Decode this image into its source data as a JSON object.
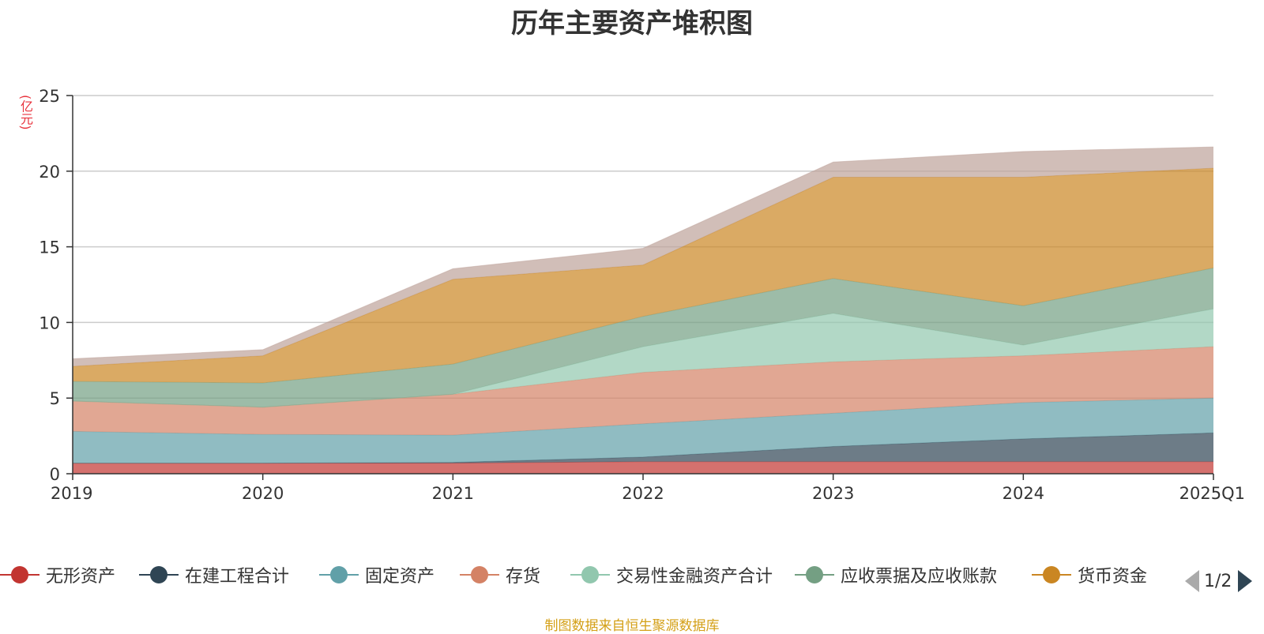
{
  "chart_data": {
    "type": "area",
    "stacked": true,
    "title": "历年主要资产堆积图",
    "ylabel": "(亿元)",
    "ylim": [
      0,
      25
    ],
    "yticks": [
      0,
      5,
      10,
      15,
      20,
      25
    ],
    "categories": [
      "2019",
      "2020",
      "2021",
      "2022",
      "2023",
      "2024",
      "2025Q1"
    ],
    "grid": true,
    "legend_position": "bottom",
    "series": [
      {
        "name": "无形资产",
        "color": "#c23531",
        "values": [
          0.7,
          0.7,
          0.7,
          0.8,
          0.8,
          0.8,
          0.8
        ]
      },
      {
        "name": "在建工程合计",
        "color": "#2f4554",
        "values": [
          0.0,
          0.0,
          0.05,
          0.3,
          1.0,
          1.5,
          1.9
        ]
      },
      {
        "name": "固定资产",
        "color": "#61a0a8",
        "values": [
          2.1,
          1.9,
          1.8,
          2.2,
          2.2,
          2.4,
          2.3
        ]
      },
      {
        "name": "存货",
        "color": "#d48265",
        "values": [
          2.0,
          1.8,
          2.7,
          3.4,
          3.4,
          3.1,
          3.4
        ]
      },
      {
        "name": "交易性金融资产合计",
        "color": "#91c7ae",
        "values": [
          0.0,
          0.0,
          0.0,
          1.7,
          3.2,
          0.7,
          2.5
        ]
      },
      {
        "name": "应收票据及应收账款",
        "color": "#749f83",
        "values": [
          1.3,
          1.6,
          2.0,
          2.0,
          2.3,
          2.6,
          2.7
        ]
      },
      {
        "name": "货币资金",
        "color": "#ca8622",
        "values": [
          1.0,
          1.8,
          5.6,
          3.4,
          6.7,
          8.5,
          6.6
        ]
      },
      {
        "name": "",
        "color": "#bda29a",
        "values": [
          0.5,
          0.4,
          0.7,
          1.1,
          1.0,
          1.7,
          1.4
        ]
      }
    ],
    "area_opacity": 0.7
  },
  "legend": {
    "page_indicator": "1/2"
  },
  "footer": {
    "source_text": "制图数据来自恒生聚源数据库"
  }
}
